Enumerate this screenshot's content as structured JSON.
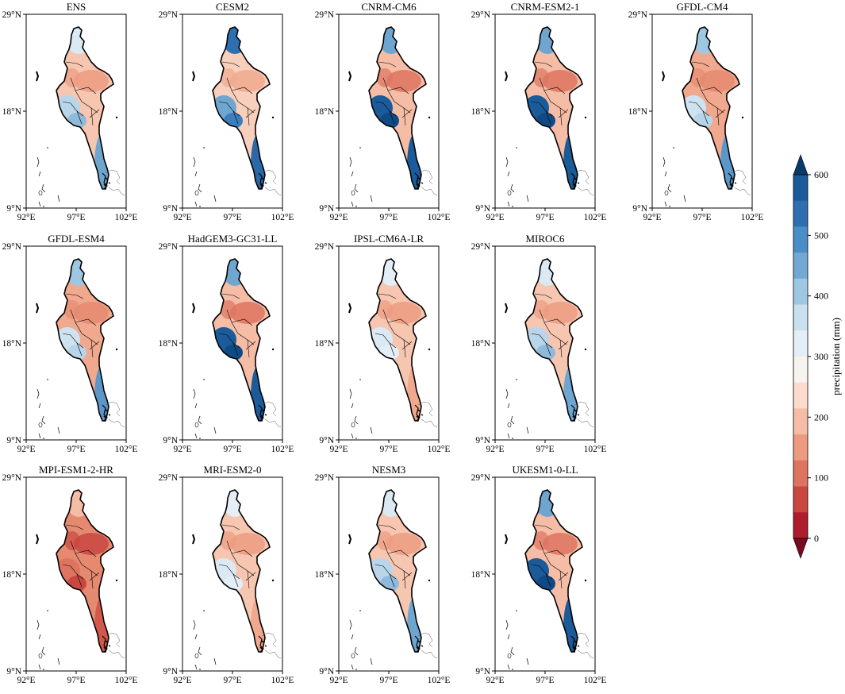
{
  "figure": {
    "lat_ticks": [
      "29°N",
      "18°N",
      "9°N"
    ],
    "lon_ticks": [
      "92°E",
      "97°E",
      "102°E"
    ]
  },
  "panels": [
    {
      "title": "ENS",
      "pattern": "mixed"
    },
    {
      "title": "CESM2",
      "pattern": "wet-coast"
    },
    {
      "title": "CNRM-CM6",
      "pattern": "very-wet-coast"
    },
    {
      "title": "CNRM-ESM2-1",
      "pattern": "very-wet-coast"
    },
    {
      "title": "GFDL-CM4",
      "pattern": "dry-interior"
    },
    {
      "title": "GFDL-ESM4",
      "pattern": "dry-interior"
    },
    {
      "title": "HadGEM3-GC31-LL",
      "pattern": "very-wet-coast"
    },
    {
      "title": "IPSL-CM6A-LR",
      "pattern": "dry"
    },
    {
      "title": "MIROC6",
      "pattern": "mixed"
    },
    {
      "title": "MPI-ESM1-2-HR",
      "pattern": "very-dry"
    },
    {
      "title": "MRI-ESM2-0",
      "pattern": "dry"
    },
    {
      "title": "NESM3",
      "pattern": "mixed"
    },
    {
      "title": "UKESM1-0-LL",
      "pattern": "very-wet-coast"
    }
  ],
  "colorbar": {
    "label": "precipitation (mm)",
    "ticks": [
      "600",
      "500",
      "400",
      "300",
      "200",
      "100",
      "0"
    ],
    "colors_top_to_bottom": [
      "#083a6b",
      "#1b5b99",
      "#2d6fb0",
      "#4a8ec6",
      "#71a9d4",
      "#9ec7e2",
      "#c9e0ee",
      "#e3eef6",
      "#f6f2ee",
      "#fbdccc",
      "#f6bda6",
      "#ec9b80",
      "#dd7460",
      "#c94741",
      "#ae1c2d",
      "#7a0a1f"
    ],
    "extend": "both"
  }
}
